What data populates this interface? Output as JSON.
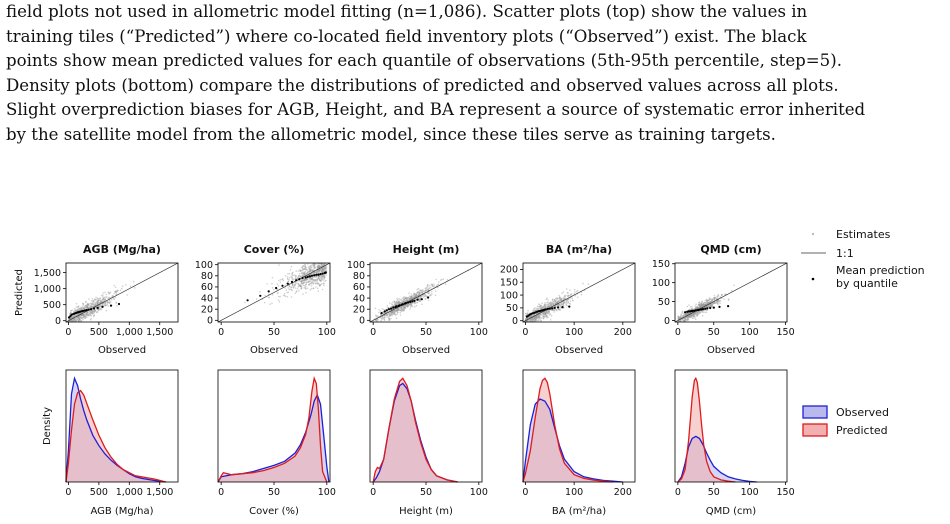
{
  "caption_lines": [
    "field plots not used in allometric model fitting (n=1,086). Scatter plots (top) show the values in",
    "training tiles (“Predicted”) where co-located field inventory plots (“Observed”) exist. The black",
    "points show mean predicted values for each quantile of observations (5th-95th percentile, step=5).",
    "Density plots (bottom) compare the distributions of predicted and observed values across all plots.",
    "Slight overprediction biases for AGB, Height, and BA represent a source of systematic error inherited",
    "by the satellite model from the allometric model, since these tiles serve as training targets."
  ],
  "scatter_legend": {
    "estimates": "Estimates",
    "one_to_one": "1:1",
    "mean_line1": "Mean prediction",
    "mean_line2": "by quantile"
  },
  "density_legend": {
    "observed": "Observed",
    "predicted": "Predicted"
  },
  "colors": {
    "observed": "#1f1fd6",
    "observed_fill": "#b9b9ee",
    "predicted": "#e01b1b",
    "predicted_fill": "#f2b0b0",
    "scatter_points": "#9a9a9a"
  },
  "chart_data": [
    {
      "type": "scatter",
      "title": "AGB (Mg/ha)",
      "xlabel": "Observed",
      "ylabel": "Predicted",
      "xlim": [
        -40,
        1800
      ],
      "ylim": [
        -40,
        1800
      ],
      "xticks": [
        0,
        500,
        1000,
        1500
      ],
      "xtick_labels": [
        "0",
        "500",
        "1,000",
        "1,500"
      ],
      "yticks": [
        0,
        500,
        1000,
        1500
      ],
      "ytick_labels": [
        "0",
        "500",
        "1,000",
        "1,500"
      ],
      "cloud": {
        "center": 250,
        "spread": 230,
        "skew": 0.9
      },
      "quantile_means": [
        [
          10,
          100
        ],
        [
          30,
          140
        ],
        [
          50,
          180
        ],
        [
          70,
          200
        ],
        [
          90,
          215
        ],
        [
          110,
          230
        ],
        [
          130,
          245
        ],
        [
          150,
          258
        ],
        [
          170,
          270
        ],
        [
          190,
          282
        ],
        [
          215,
          295
        ],
        [
          240,
          305
        ],
        [
          265,
          315
        ],
        [
          295,
          330
        ],
        [
          330,
          345
        ],
        [
          370,
          360
        ],
        [
          420,
          380
        ],
        [
          480,
          400
        ],
        [
          560,
          430
        ],
        [
          700,
          470
        ],
        [
          830,
          520
        ]
      ]
    },
    {
      "type": "scatter",
      "title": "Cover (%)",
      "xlabel": "Observed",
      "ylabel": "",
      "xlim": [
        -3,
        103
      ],
      "ylim": [
        -3,
        103
      ],
      "xticks": [
        0,
        50,
        100
      ],
      "xtick_labels": [
        "0",
        "50",
        "100"
      ],
      "yticks": [
        0,
        20,
        40,
        60,
        80,
        100
      ],
      "ytick_labels": [
        "0",
        "20",
        "40",
        "60",
        "80",
        "100"
      ],
      "cloud": {
        "center": 82,
        "spread": 18,
        "skew": -1
      },
      "quantile_means": [
        [
          25,
          36
        ],
        [
          37,
          44
        ],
        [
          45,
          52
        ],
        [
          52,
          58
        ],
        [
          58,
          62
        ],
        [
          63,
          66
        ],
        [
          67,
          69
        ],
        [
          71,
          72
        ],
        [
          74,
          74
        ],
        [
          77,
          76
        ],
        [
          80,
          77
        ],
        [
          82,
          78
        ],
        [
          84,
          79
        ],
        [
          86,
          80
        ],
        [
          88,
          81
        ],
        [
          90,
          82
        ],
        [
          92,
          82
        ],
        [
          94,
          83
        ],
        [
          96,
          84
        ],
        [
          98,
          85
        ],
        [
          99,
          86
        ]
      ]
    },
    {
      "type": "scatter",
      "title": "Height (m)",
      "xlabel": "Observed",
      "ylabel": "",
      "xlim": [
        -3,
        103
      ],
      "ylim": [
        -3,
        103
      ],
      "xticks": [
        0,
        50,
        100
      ],
      "xtick_labels": [
        "0",
        "50",
        "100"
      ],
      "yticks": [
        0,
        20,
        40,
        60,
        80,
        100
      ],
      "ytick_labels": [
        "0",
        "20",
        "40",
        "60",
        "80",
        "100"
      ],
      "cloud": {
        "center": 30,
        "spread": 11,
        "skew": 0.3
      },
      "quantile_means": [
        [
          8,
          13
        ],
        [
          11,
          16
        ],
        [
          13,
          18
        ],
        [
          15,
          20
        ],
        [
          17,
          21
        ],
        [
          19,
          23
        ],
        [
          21,
          24
        ],
        [
          22,
          25
        ],
        [
          24,
          26
        ],
        [
          25,
          27
        ],
        [
          27,
          28
        ],
        [
          28,
          29
        ],
        [
          30,
          30
        ],
        [
          31,
          31
        ],
        [
          33,
          32
        ],
        [
          35,
          33
        ],
        [
          37,
          34
        ],
        [
          39,
          35
        ],
        [
          42,
          37
        ],
        [
          46,
          38
        ],
        [
          52,
          41
        ]
      ]
    },
    {
      "type": "scatter",
      "title": "BA (m²/ha)",
      "xlabel": "Observed",
      "ylabel": "",
      "xlim": [
        -5,
        225
      ],
      "ylim": [
        -5,
        225
      ],
      "xticks": [
        0,
        100,
        200
      ],
      "xtick_labels": [
        "0",
        "100",
        "200"
      ],
      "yticks": [
        0,
        50,
        100,
        150,
        200
      ],
      "ytick_labels": [
        "0",
        "50",
        "100",
        "150",
        "200"
      ],
      "cloud": {
        "center": 38,
        "spread": 26,
        "skew": 0.8
      },
      "quantile_means": [
        [
          3,
          16
        ],
        [
          6,
          20
        ],
        [
          9,
          24
        ],
        [
          12,
          27
        ],
        [
          15,
          29
        ],
        [
          18,
          31
        ],
        [
          21,
          33
        ],
        [
          24,
          35
        ],
        [
          27,
          37
        ],
        [
          30,
          38
        ],
        [
          33,
          40
        ],
        [
          36,
          41
        ],
        [
          39,
          43
        ],
        [
          42,
          44
        ],
        [
          46,
          46
        ],
        [
          50,
          47
        ],
        [
          55,
          48
        ],
        [
          60,
          50
        ],
        [
          67,
          52
        ],
        [
          76,
          53
        ],
        [
          90,
          55
        ]
      ]
    },
    {
      "type": "scatter",
      "title": "QMD (cm)",
      "xlabel": "Observed",
      "ylabel": "",
      "xlim": [
        -4,
        152
      ],
      "ylim": [
        -4,
        152
      ],
      "xticks": [
        0,
        50,
        100,
        150
      ],
      "xtick_labels": [
        "0",
        "50",
        "100",
        "150"
      ],
      "yticks": [
        0,
        50,
        100,
        150
      ],
      "ytick_labels": [
        "0",
        "50",
        "100",
        "150"
      ],
      "cloud": {
        "center": 28,
        "spread": 13,
        "skew": 0.4
      },
      "quantile_means": [
        [
          10,
          22
        ],
        [
          13,
          23
        ],
        [
          15,
          24
        ],
        [
          17,
          24
        ],
        [
          19,
          25
        ],
        [
          20,
          25
        ],
        [
          22,
          26
        ],
        [
          23,
          26
        ],
        [
          25,
          27
        ],
        [
          26,
          27
        ],
        [
          28,
          28
        ],
        [
          29,
          28
        ],
        [
          31,
          29
        ],
        [
          33,
          29
        ],
        [
          35,
          30
        ],
        [
          38,
          31
        ],
        [
          41,
          32
        ],
        [
          45,
          33
        ],
        [
          50,
          34
        ],
        [
          58,
          36
        ],
        [
          70,
          38
        ]
      ]
    },
    {
      "type": "area",
      "title": "",
      "xlabel": "AGB (Mg/ha)",
      "ylabel": "Density",
      "xlim": [
        -40,
        1800
      ],
      "xticks": [
        0,
        500,
        1000,
        1500
      ],
      "xtick_labels": [
        "0",
        "500",
        "1,000",
        "1,500"
      ],
      "series": [
        {
          "name": "Observed",
          "x": [
            -40,
            0,
            50,
            100,
            150,
            200,
            250,
            300,
            400,
            500,
            600,
            700,
            800,
            900,
            1000,
            1100,
            1200,
            1300,
            1400,
            1500,
            1600
          ],
          "y": [
            0,
            0.3,
            0.85,
            1.0,
            0.93,
            0.8,
            0.69,
            0.6,
            0.45,
            0.35,
            0.27,
            0.21,
            0.16,
            0.12,
            0.08,
            0.05,
            0.035,
            0.025,
            0.015,
            0.008,
            0
          ]
        },
        {
          "name": "Predicted",
          "x": [
            -40,
            0,
            50,
            100,
            150,
            200,
            250,
            300,
            400,
            500,
            600,
            700,
            800,
            900,
            1000,
            1100,
            1200,
            1300,
            1400,
            1500,
            1600
          ],
          "y": [
            0,
            0.18,
            0.5,
            0.75,
            0.86,
            0.88,
            0.84,
            0.76,
            0.6,
            0.45,
            0.33,
            0.24,
            0.17,
            0.12,
            0.09,
            0.06,
            0.05,
            0.04,
            0.03,
            0.015,
            0
          ]
        }
      ]
    },
    {
      "type": "area",
      "title": "",
      "xlabel": "Cover (%)",
      "ylabel": "",
      "xlim": [
        -3,
        103
      ],
      "xticks": [
        0,
        50,
        100
      ],
      "xtick_labels": [
        "0",
        "50",
        "100"
      ],
      "series": [
        {
          "name": "Observed",
          "x": [
            -3,
            0,
            10,
            20,
            30,
            40,
            50,
            60,
            70,
            75,
            80,
            85,
            88,
            91,
            94,
            97,
            100,
            102
          ],
          "y": [
            0,
            0.05,
            0.07,
            0.08,
            0.1,
            0.13,
            0.16,
            0.2,
            0.28,
            0.36,
            0.48,
            0.65,
            0.78,
            0.84,
            0.75,
            0.45,
            0.15,
            0
          ]
        },
        {
          "name": "Predicted",
          "x": [
            -3,
            0,
            2,
            10,
            20,
            30,
            40,
            50,
            60,
            70,
            75,
            80,
            83,
            86,
            88,
            90,
            92,
            94,
            96,
            100
          ],
          "y": [
            0,
            0.06,
            0.09,
            0.07,
            0.08,
            0.09,
            0.11,
            0.14,
            0.18,
            0.25,
            0.33,
            0.46,
            0.62,
            0.88,
            1.0,
            0.95,
            0.7,
            0.35,
            0.1,
            0
          ]
        }
      ]
    },
    {
      "type": "area",
      "title": "",
      "xlabel": "Height (m)",
      "ylabel": "",
      "xlim": [
        -3,
        103
      ],
      "xticks": [
        0,
        50,
        100
      ],
      "xtick_labels": [
        "0",
        "50",
        "100"
      ],
      "series": [
        {
          "name": "Observed",
          "x": [
            0,
            3,
            6,
            10,
            15,
            20,
            25,
            28,
            32,
            36,
            40,
            45,
            50,
            55,
            60,
            70,
            80
          ],
          "y": [
            0,
            0.04,
            0.1,
            0.22,
            0.52,
            0.78,
            0.93,
            0.95,
            0.9,
            0.78,
            0.6,
            0.4,
            0.24,
            0.12,
            0.06,
            0.02,
            0
          ]
        },
        {
          "name": "Predicted",
          "x": [
            0,
            2,
            4,
            6,
            10,
            15,
            20,
            25,
            28,
            32,
            36,
            40,
            45,
            50,
            55,
            60,
            70,
            80
          ],
          "y": [
            0,
            0.1,
            0.14,
            0.13,
            0.22,
            0.52,
            0.8,
            0.97,
            1.0,
            0.93,
            0.78,
            0.58,
            0.38,
            0.22,
            0.12,
            0.06,
            0.02,
            0
          ]
        }
      ]
    },
    {
      "type": "area",
      "title": "",
      "xlabel": "BA (m²/ha)",
      "ylabel": "",
      "xlim": [
        -5,
        225
      ],
      "xticks": [
        0,
        100,
        200
      ],
      "xtick_labels": [
        "0",
        "100",
        "200"
      ],
      "series": [
        {
          "name": "Observed",
          "x": [
            -5,
            0,
            10,
            20,
            30,
            40,
            50,
            60,
            70,
            80,
            100,
            120,
            140,
            160,
            180,
            200
          ],
          "y": [
            0,
            0.2,
            0.55,
            0.75,
            0.8,
            0.78,
            0.7,
            0.52,
            0.35,
            0.22,
            0.1,
            0.05,
            0.03,
            0.015,
            0.008,
            0
          ]
        },
        {
          "name": "Predicted",
          "x": [
            -5,
            0,
            10,
            20,
            30,
            35,
            40,
            45,
            50,
            60,
            70,
            80,
            100,
            120,
            140,
            160,
            180
          ],
          "y": [
            0,
            0.08,
            0.3,
            0.62,
            0.9,
            0.98,
            1.0,
            0.96,
            0.85,
            0.55,
            0.32,
            0.18,
            0.07,
            0.035,
            0.018,
            0.008,
            0
          ]
        }
      ]
    },
    {
      "type": "area",
      "title": "",
      "xlabel": "QMD (cm)",
      "ylabel": "",
      "xlim": [
        -4,
        152
      ],
      "xticks": [
        0,
        50,
        100,
        150
      ],
      "xtick_labels": [
        "0",
        "50",
        "100",
        "150"
      ],
      "series": [
        {
          "name": "Observed",
          "x": [
            0,
            5,
            10,
            15,
            20,
            25,
            30,
            35,
            40,
            45,
            50,
            60,
            70,
            80,
            90,
            100,
            110
          ],
          "y": [
            0,
            0.05,
            0.18,
            0.34,
            0.42,
            0.44,
            0.42,
            0.36,
            0.28,
            0.21,
            0.15,
            0.09,
            0.05,
            0.03,
            0.015,
            0.006,
            0
          ]
        },
        {
          "name": "Predicted",
          "x": [
            0,
            5,
            10,
            15,
            20,
            23,
            25,
            27,
            30,
            33,
            36,
            40,
            45,
            50,
            60,
            70,
            80
          ],
          "y": [
            0,
            0.03,
            0.12,
            0.4,
            0.82,
            0.98,
            1.0,
            0.96,
            0.78,
            0.55,
            0.36,
            0.2,
            0.1,
            0.05,
            0.02,
            0.008,
            0
          ]
        }
      ]
    }
  ]
}
